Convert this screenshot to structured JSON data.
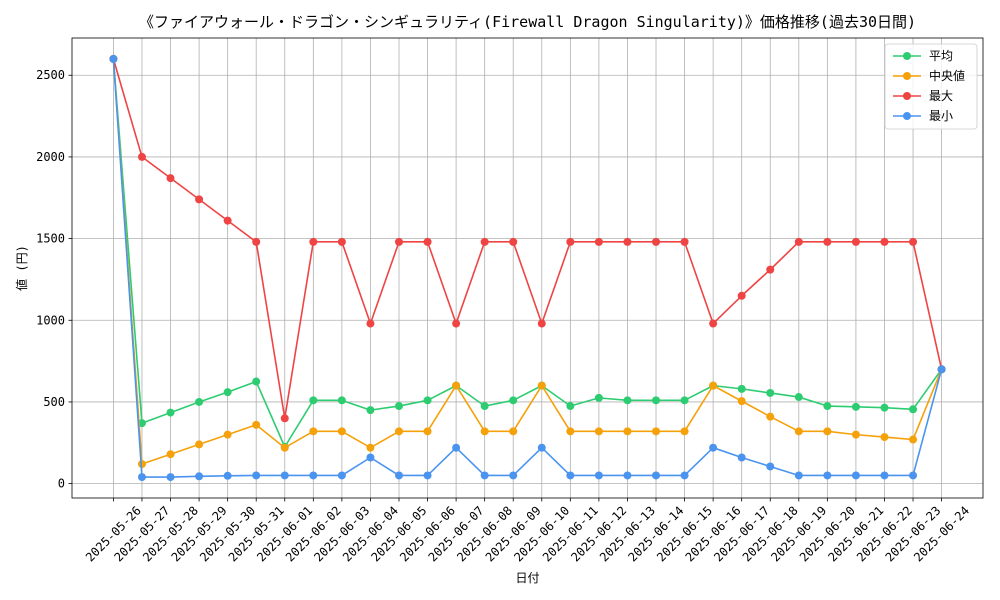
{
  "chart_data": {
    "type": "line",
    "title": "《ファイアウォール・ドラゴン・シンギュラリティ(Firewall Dragon Singularity)》価格推移(過去30日間)",
    "xlabel": "日付",
    "ylabel": "値 (円)",
    "categories": [
      "2025-05-26",
      "2025-05-27",
      "2025-05-28",
      "2025-05-29",
      "2025-05-30",
      "2025-05-31",
      "2025-06-01",
      "2025-06-02",
      "2025-06-03",
      "2025-06-04",
      "2025-06-05",
      "2025-06-06",
      "2025-06-07",
      "2025-06-08",
      "2025-06-09",
      "2025-06-10",
      "2025-06-11",
      "2025-06-12",
      "2025-06-13",
      "2025-06-14",
      "2025-06-15",
      "2025-06-16",
      "2025-06-17",
      "2025-06-18",
      "2025-06-19",
      "2025-06-20",
      "2025-06-21",
      "2025-06-22",
      "2025-06-23",
      "2025-06-24"
    ],
    "ylim": [
      -88,
      2728
    ],
    "yticks": [
      0,
      500,
      1000,
      1500,
      2000,
      2500
    ],
    "grid": true,
    "legend_position": "top-right",
    "series": [
      {
        "name": "平均",
        "color": "#2ecc71",
        "values": [
          2600,
          370,
          435,
          500,
          560,
          625,
          225,
          510,
          510,
          450,
          475,
          510,
          600,
          475,
          510,
          600,
          475,
          525,
          510,
          510,
          510,
          600,
          580,
          555,
          530,
          475,
          470,
          465,
          455,
          700
        ]
      },
      {
        "name": "中央値",
        "color": "#f5a10b",
        "values": [
          2600,
          120,
          180,
          240,
          300,
          360,
          220,
          320,
          320,
          220,
          320,
          320,
          600,
          320,
          320,
          600,
          320,
          320,
          320,
          320,
          320,
          600,
          505,
          410,
          320,
          320,
          300,
          285,
          270,
          700
        ]
      },
      {
        "name": "最大",
        "color": "#ef4444",
        "values": [
          2600,
          2000,
          1870,
          1740,
          1610,
          1480,
          400,
          1480,
          1480,
          980,
          1480,
          1480,
          980,
          1480,
          1480,
          980,
          1480,
          1480,
          1480,
          1480,
          1480,
          980,
          1150,
          1310,
          1480,
          1480,
          1480,
          1480,
          1480,
          700
        ]
      },
      {
        "name": "最小",
        "color": "#4a94f0",
        "values": [
          2600,
          40,
          40,
          45,
          48,
          50,
          50,
          50,
          50,
          160,
          50,
          50,
          220,
          50,
          50,
          220,
          50,
          50,
          50,
          50,
          50,
          220,
          160,
          105,
          50,
          50,
          50,
          50,
          50,
          700
        ]
      }
    ]
  }
}
